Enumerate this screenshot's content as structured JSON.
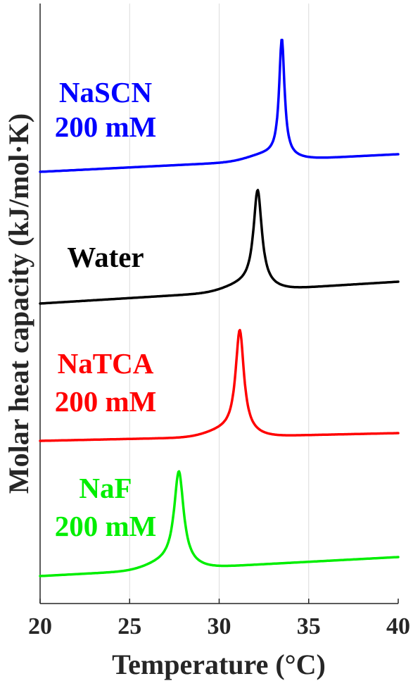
{
  "chart_data": {
    "type": "line",
    "xlabel": "Temperature (°C)",
    "ylabel": "Molar heat capacity (kJ/mol·K)",
    "xlim": [
      20,
      40
    ],
    "xticks": [
      20,
      25,
      30,
      35,
      40
    ],
    "grid": "vertical only",
    "y_tick_labels": "none (vertically offset curves)",
    "series": [
      {
        "key": "nascn",
        "label_lines": [
          "NaSCN",
          "200 mM"
        ],
        "color": "#0000ff",
        "peak_temperature": 33.5,
        "peak_width": 0.18,
        "baseline_left": 0.0,
        "baseline_right": 0.25,
        "peak_height": 1.62,
        "order_from_top": 1
      },
      {
        "key": "water",
        "label_lines": [
          "Water"
        ],
        "color": "#000000",
        "peak_temperature": 32.15,
        "peak_width": 0.28,
        "baseline_left": 0.0,
        "baseline_right": 0.31,
        "peak_height": 1.32,
        "order_from_top": 2
      },
      {
        "key": "natca",
        "label_lines": [
          "NaTCA",
          "200 mM"
        ],
        "color": "#ff0000",
        "peak_temperature": 31.15,
        "peak_width": 0.28,
        "baseline_left": 0.0,
        "baseline_right": 0.11,
        "peak_height": 1.41,
        "order_from_top": 3
      },
      {
        "key": "naf",
        "label_lines": [
          "NaF",
          "200 mM"
        ],
        "color": "#00ee00",
        "peak_temperature": 27.75,
        "peak_width": 0.32,
        "baseline_left": 0.0,
        "baseline_right": 0.27,
        "peak_height": 1.28,
        "order_from_top": 4
      }
    ]
  }
}
